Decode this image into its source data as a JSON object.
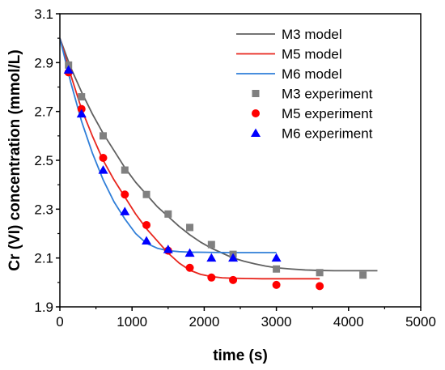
{
  "chart_data": {
    "type": "scatter",
    "title": "",
    "xlabel": "time (s)",
    "ylabel": "Cr (VI) concentration (mmol/L)",
    "xlim": [
      0,
      5000
    ],
    "ylim": [
      1.9,
      3.1
    ],
    "x_ticks": [
      0,
      1000,
      2000,
      3000,
      4000,
      5000
    ],
    "y_ticks": [
      1.9,
      2.1,
      2.3,
      2.5,
      2.7,
      2.9,
      3.1
    ],
    "x_tick_labels": [
      "0",
      "1000",
      "2000",
      "3000",
      "4000",
      "5000"
    ],
    "y_tick_labels": [
      "1.9",
      "2.1",
      "2.3",
      "2.5",
      "2.7",
      "2.9",
      "3.1"
    ],
    "grid": false,
    "legend_position": "top-right",
    "series": [
      {
        "name": "M3 model",
        "kind": "line",
        "color": "#606060",
        "x": [
          0,
          150,
          300,
          450,
          600,
          750,
          900,
          1050,
          1200,
          1350,
          1500,
          1650,
          1800,
          1950,
          2100,
          2250,
          2400,
          2550,
          2700,
          2850,
          3000,
          3200,
          3400,
          3600,
          3800,
          4000,
          4200,
          4400
        ],
        "y": [
          3.0,
          2.88,
          2.78,
          2.69,
          2.61,
          2.54,
          2.47,
          2.41,
          2.36,
          2.31,
          2.27,
          2.23,
          2.195,
          2.165,
          2.14,
          2.12,
          2.1,
          2.087,
          2.076,
          2.067,
          2.06,
          2.055,
          2.051,
          2.049,
          2.048,
          2.048,
          2.048,
          2.048
        ]
      },
      {
        "name": "M5 model",
        "kind": "line",
        "color": "#e8261e",
        "x": [
          0,
          150,
          300,
          450,
          600,
          750,
          900,
          1050,
          1200,
          1350,
          1500,
          1650,
          1800,
          1950,
          2100,
          2250,
          2400,
          2600,
          2800,
          3000,
          3300,
          3600
        ],
        "y": [
          3.0,
          2.85,
          2.71,
          2.6,
          2.5,
          2.42,
          2.35,
          2.28,
          2.22,
          2.17,
          2.12,
          2.08,
          2.05,
          2.033,
          2.024,
          2.019,
          2.017,
          2.016,
          2.015,
          2.015,
          2.015,
          2.015
        ]
      },
      {
        "name": "M6 model",
        "kind": "line",
        "color": "#2f7ed8",
        "x": [
          0,
          150,
          300,
          450,
          600,
          750,
          900,
          1050,
          1200,
          1350,
          1500,
          1650,
          1800,
          2100,
          2400,
          2700,
          3000
        ],
        "y": [
          3.0,
          2.82,
          2.66,
          2.53,
          2.42,
          2.33,
          2.26,
          2.2,
          2.16,
          2.14,
          2.13,
          2.126,
          2.124,
          2.123,
          2.122,
          2.122,
          2.122
        ]
      },
      {
        "name": "M3 experiment",
        "kind": "scatter",
        "marker": "square",
        "color": "#808080",
        "x": [
          120,
          300,
          600,
          900,
          1200,
          1500,
          1800,
          2100,
          2400,
          3000,
          3600,
          4200
        ],
        "y": [
          2.89,
          2.76,
          2.6,
          2.46,
          2.36,
          2.28,
          2.225,
          2.155,
          2.115,
          2.055,
          2.04,
          2.03
        ]
      },
      {
        "name": "M5 experiment",
        "kind": "scatter",
        "marker": "circle",
        "color": "#ff0000",
        "x": [
          120,
          300,
          600,
          900,
          1200,
          1500,
          1800,
          2100,
          2400,
          3000,
          3600
        ],
        "y": [
          2.86,
          2.71,
          2.51,
          2.36,
          2.235,
          2.13,
          2.06,
          2.02,
          2.01,
          1.99,
          1.985
        ]
      },
      {
        "name": "M6 experiment",
        "kind": "scatter",
        "marker": "triangle",
        "color": "#0000ff",
        "x": [
          120,
          300,
          600,
          900,
          1200,
          1500,
          1800,
          2100,
          2400,
          3000
        ],
        "y": [
          2.87,
          2.69,
          2.46,
          2.29,
          2.17,
          2.135,
          2.12,
          2.1,
          2.1,
          2.1
        ]
      }
    ]
  }
}
